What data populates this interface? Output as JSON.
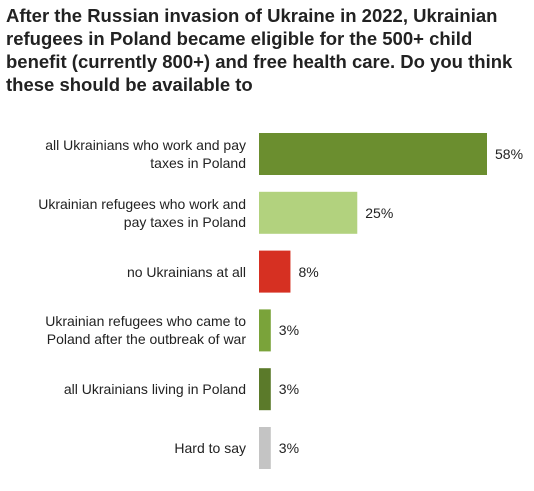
{
  "chart_data": {
    "type": "bar",
    "orientation": "horizontal",
    "title_lines": [
      "After the Russian invasion of Ukraine in 2022, Ukrainian",
      "refugees in Poland became eligible for the 500+ child",
      "benefit (currently 800+) and free health care. Do you think",
      "these should be available to"
    ],
    "categories": [
      [
        "all Ukrainians who work and pay",
        "taxes in Poland"
      ],
      [
        "Ukrainian refugees who work and",
        "pay taxes in Poland"
      ],
      [
        "no Ukrainians at all"
      ],
      [
        "Ukrainian refugees who came to",
        "Poland after the outbreak of war"
      ],
      [
        "all Ukrainians living in Poland"
      ],
      [
        "Hard to say"
      ]
    ],
    "values": [
      58,
      25,
      8,
      3,
      3,
      3
    ],
    "value_labels": [
      "58%",
      "25%",
      "8%",
      "3%",
      "3%",
      "3%"
    ],
    "colors": [
      "#6b8e2f",
      "#b2d27e",
      "#d63022",
      "#7aa33a",
      "#5b7a2a",
      "#c4c4c4"
    ],
    "xlim": [
      0,
      58
    ],
    "grid": false,
    "legend": "none"
  }
}
